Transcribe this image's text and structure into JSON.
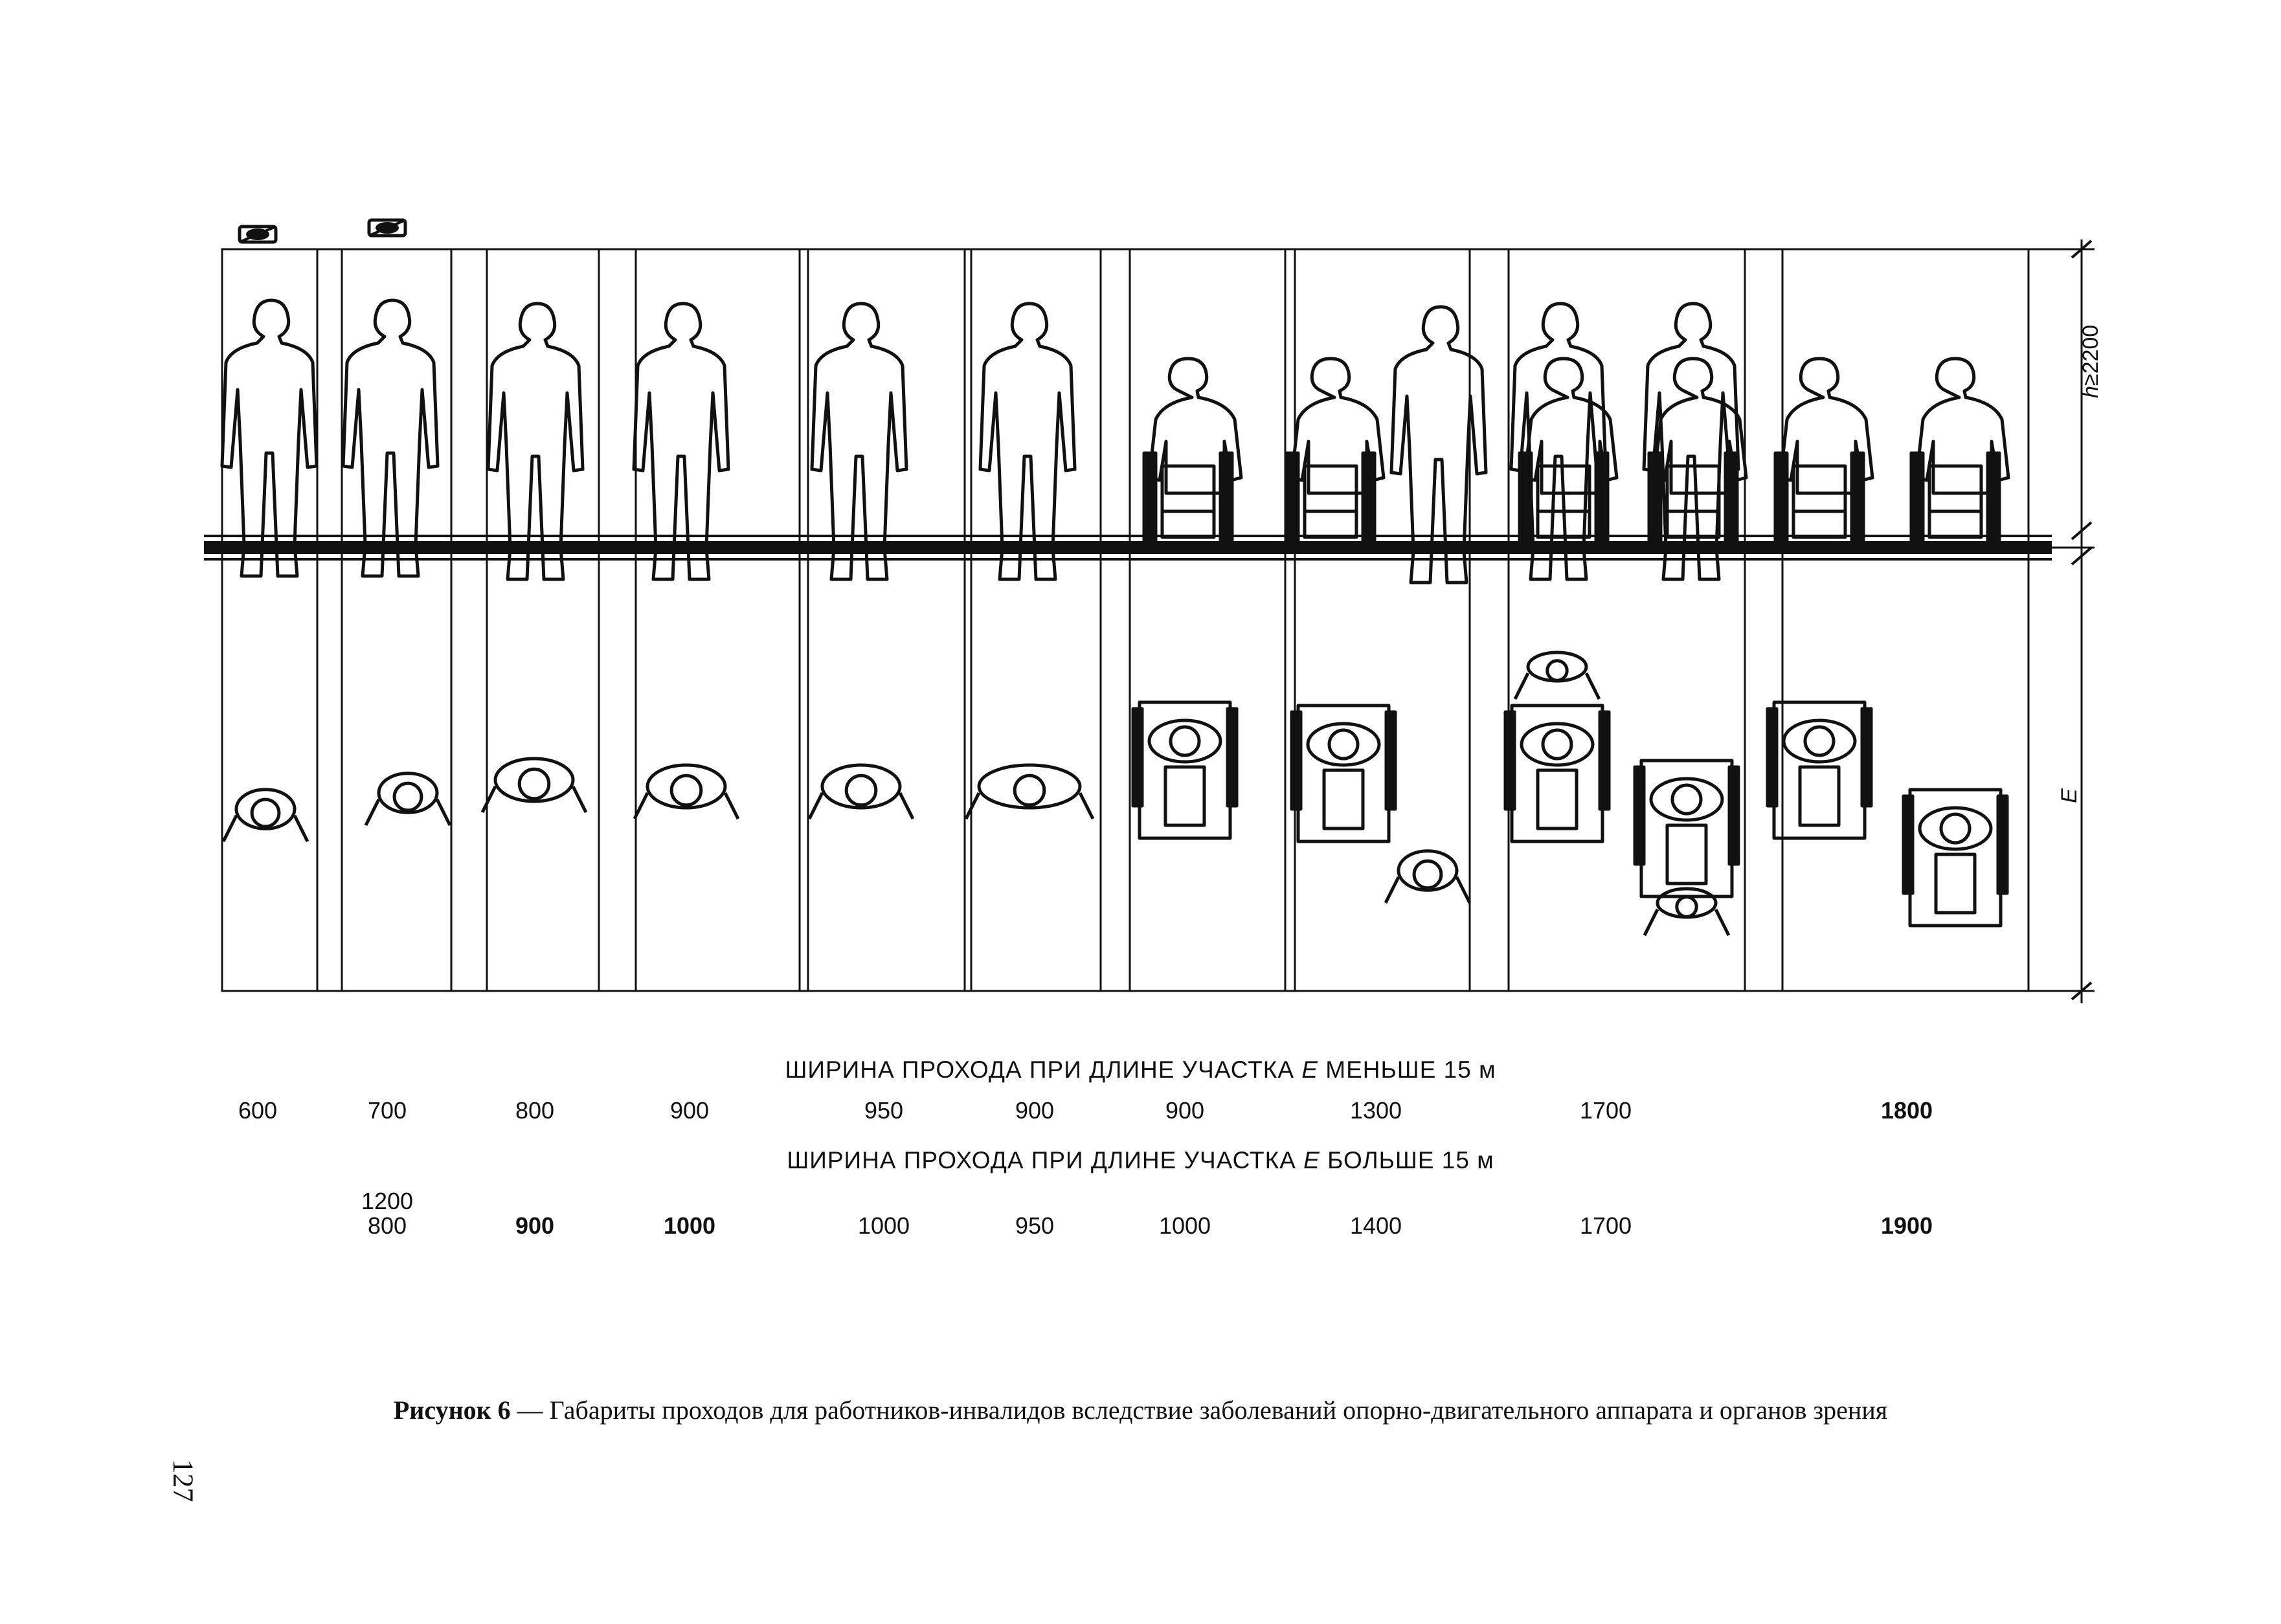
{
  "columns": [
    {
      "id": "blind-cane",
      "less": "600",
      "more": "",
      "more_bold": false,
      "less_bold": false
    },
    {
      "id": "blind-stick",
      "less": "700",
      "more": "800",
      "more_alt": "1200",
      "more_bold": false,
      "less_bold": false
    },
    {
      "id": "two-sticks",
      "less": "800",
      "more": "900",
      "more_bold": true,
      "less_bold": false
    },
    {
      "id": "two-crutches",
      "less": "900",
      "more": "1000",
      "more_bold": true,
      "less_bold": false
    },
    {
      "id": "axillary-crutches",
      "less": "950",
      "more": "1000",
      "more_bold": false,
      "less_bold": false
    },
    {
      "id": "walking-frames",
      "less": "900",
      "more": "950",
      "more_bold": false,
      "less_bold": false
    },
    {
      "id": "wheelchair",
      "less": "900",
      "more": "1000",
      "more_bold": false,
      "less_bold": false
    },
    {
      "id": "wheelchair-and-pedestrian",
      "less": "1300",
      "more": "1400",
      "more_bold": false,
      "less_bold": false
    },
    {
      "id": "two-assisted-wheelchairs",
      "less": "1700",
      "more": "1700",
      "more_bold": false,
      "less_bold": false
    },
    {
      "id": "two-wheelchairs",
      "less": "1800",
      "more": "1900",
      "more_bold": true,
      "less_bold": true
    }
  ],
  "headers": {
    "less_prefix": "ШИРИНА ПРОХОДА ПРИ ДЛИНЕ УЧАСТКА ",
    "less_var": "Е",
    "less_suffix": " МЕНЬШЕ 15 м",
    "more_prefix": "ШИРИНА ПРОХОДА ПРИ ДЛИНЕ УЧАСТКА ",
    "more_var": "Е",
    "more_suffix": " БОЛЬШЕ 15 м"
  },
  "dimensions": {
    "height_var": "h",
    "height_text": "≥2200",
    "length_label": "Е"
  },
  "caption": {
    "label": "Рисунок 6",
    "text": " — Габариты проходов для работников-инвалидов вследствие заболеваний  опорно-двигательного аппарата и органов зрения"
  },
  "page_number": "127",
  "icons": [
    "blind-symbol-icon",
    "blind-symbol-icon"
  ]
}
